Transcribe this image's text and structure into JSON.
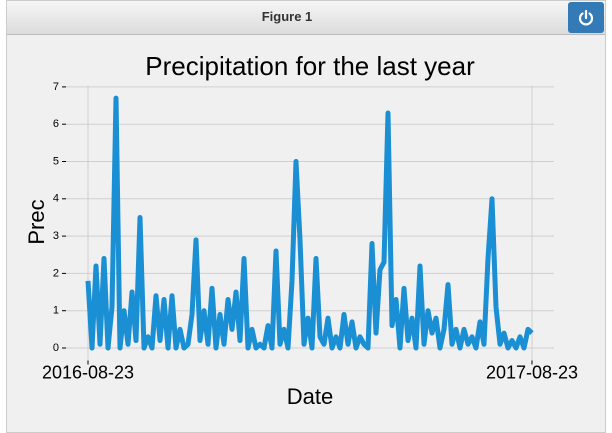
{
  "window": {
    "title": "Figure 1"
  },
  "chart_data": {
    "type": "line",
    "title": "Precipitation for the last year",
    "x_label": "Date",
    "y_label": "Prec",
    "categories": [
      "2016-08-23",
      null,
      null,
      null,
      null,
      null,
      null,
      null,
      null,
      null,
      null,
      null,
      null,
      null,
      null,
      null,
      null,
      null,
      null,
      null,
      null,
      null,
      null,
      null,
      null,
      null,
      null,
      null,
      null,
      null,
      null,
      null,
      null,
      null,
      null,
      null,
      null,
      null,
      null,
      null,
      null,
      null,
      null,
      null,
      null,
      null,
      null,
      null,
      null,
      null,
      null,
      null,
      null,
      null,
      null,
      null,
      null,
      null,
      null,
      null,
      null,
      null,
      null,
      null,
      null,
      null,
      null,
      null,
      null,
      null,
      null,
      null,
      null,
      null,
      null,
      null,
      null,
      null,
      null,
      null,
      null,
      null,
      null,
      null,
      null,
      null,
      null,
      null,
      null,
      null,
      null,
      null,
      null,
      null,
      null,
      null,
      null,
      null,
      null,
      null,
      null,
      null,
      null,
      null,
      null,
      null,
      null,
      null,
      null,
      null,
      null,
      "2017-08-23"
    ],
    "series": [
      {
        "name": "Prec",
        "color": "#1a8fd3",
        "values": [
          1.8,
          0,
          2.2,
          0.1,
          2.4,
          0,
          1.1,
          6.7,
          0,
          1.0,
          0.1,
          1.5,
          0.2,
          3.5,
          0,
          0.3,
          0,
          1.4,
          0.2,
          1.3,
          0,
          1.4,
          0,
          0.5,
          0,
          0.1,
          0.9,
          2.9,
          0.2,
          1.0,
          0.1,
          1.6,
          0,
          0.9,
          0.1,
          1.3,
          0.5,
          1.5,
          0.2,
          2.4,
          0,
          0.5,
          0,
          0.1,
          0,
          0.6,
          0,
          2.6,
          0.1,
          0.5,
          0,
          1.8,
          5.0,
          2.9,
          0.1,
          0.8,
          0,
          2.4,
          0.3,
          0.1,
          0.8,
          0,
          0.3,
          0,
          0.9,
          0.1,
          0.7,
          0,
          0.3,
          0.1,
          0,
          2.8,
          0.4,
          2.1,
          2.3,
          6.3,
          0.6,
          1.3,
          0,
          1.6,
          0.2,
          0.8,
          0,
          2.2,
          0.1,
          1.0,
          0.4,
          0.8,
          0,
          0.5,
          1.7,
          0.1,
          0.5,
          0,
          0.5,
          0.1,
          0.3,
          0,
          0.7,
          0.1,
          2.4,
          4.0,
          1.1,
          0.1,
          0.4,
          0,
          0.2,
          0,
          0.3,
          0,
          0.5,
          0.4
        ]
      }
    ],
    "ylim": [
      -0.335,
      7.035
    ],
    "yticks": [
      0,
      1,
      2,
      3,
      4,
      5,
      6,
      7
    ],
    "grid": true
  }
}
